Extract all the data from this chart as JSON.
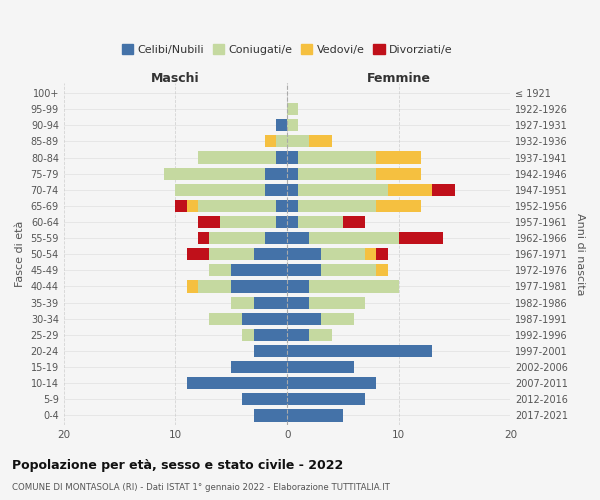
{
  "age_groups": [
    "0-4",
    "5-9",
    "10-14",
    "15-19",
    "20-24",
    "25-29",
    "30-34",
    "35-39",
    "40-44",
    "45-49",
    "50-54",
    "55-59",
    "60-64",
    "65-69",
    "70-74",
    "75-79",
    "80-84",
    "85-89",
    "90-94",
    "95-99",
    "100+"
  ],
  "birth_years": [
    "2017-2021",
    "2012-2016",
    "2007-2011",
    "2002-2006",
    "1997-2001",
    "1992-1996",
    "1987-1991",
    "1982-1986",
    "1977-1981",
    "1972-1976",
    "1967-1971",
    "1962-1966",
    "1957-1961",
    "1952-1956",
    "1947-1951",
    "1942-1946",
    "1937-1941",
    "1932-1936",
    "1927-1931",
    "1922-1926",
    "≤ 1921"
  ],
  "male": {
    "celibi": [
      3,
      4,
      9,
      5,
      3,
      3,
      4,
      3,
      5,
      5,
      3,
      2,
      1,
      1,
      2,
      2,
      1,
      0,
      1,
      0,
      0
    ],
    "coniugati": [
      0,
      0,
      0,
      0,
      0,
      1,
      3,
      2,
      3,
      2,
      4,
      5,
      5,
      7,
      8,
      9,
      7,
      1,
      0,
      0,
      0
    ],
    "vedovi": [
      0,
      0,
      0,
      0,
      0,
      0,
      0,
      0,
      1,
      0,
      0,
      0,
      0,
      1,
      0,
      0,
      0,
      1,
      0,
      0,
      0
    ],
    "divorziati": [
      0,
      0,
      0,
      0,
      0,
      0,
      0,
      0,
      0,
      0,
      2,
      1,
      2,
      1,
      0,
      0,
      0,
      0,
      0,
      0,
      0
    ]
  },
  "female": {
    "nubili": [
      5,
      7,
      8,
      6,
      13,
      2,
      3,
      2,
      2,
      3,
      3,
      2,
      1,
      1,
      1,
      1,
      1,
      0,
      0,
      0,
      0
    ],
    "coniugate": [
      0,
      0,
      0,
      0,
      0,
      2,
      3,
      5,
      8,
      5,
      4,
      8,
      4,
      7,
      8,
      7,
      7,
      2,
      1,
      1,
      0
    ],
    "vedove": [
      0,
      0,
      0,
      0,
      0,
      0,
      0,
      0,
      0,
      1,
      1,
      0,
      0,
      4,
      4,
      4,
      4,
      2,
      0,
      0,
      0
    ],
    "divorziate": [
      0,
      0,
      0,
      0,
      0,
      0,
      0,
      0,
      0,
      0,
      1,
      4,
      2,
      0,
      2,
      0,
      0,
      0,
      0,
      0,
      0
    ]
  },
  "colors": {
    "celibi_nubili": "#4472a8",
    "coniugati": "#c5d9a0",
    "vedovi": "#f5c040",
    "divorziati": "#c0101a"
  },
  "title": "Popolazione per età, sesso e stato civile - 2022",
  "subtitle": "COMUNE DI MONTASOLA (RI) - Dati ISTAT 1° gennaio 2022 - Elaborazione TUTTITALIA.IT",
  "xlabel_left": "Maschi",
  "xlabel_right": "Femmine",
  "ylabel_left": "Fasce di età",
  "ylabel_right": "Anni di nascita",
  "legend_labels": [
    "Celibi/Nubili",
    "Coniugati/e",
    "Vedovi/e",
    "Divorziati/e"
  ],
  "xlim": 20,
  "background_color": "#f5f5f5",
  "grid_color": "#cccccc"
}
